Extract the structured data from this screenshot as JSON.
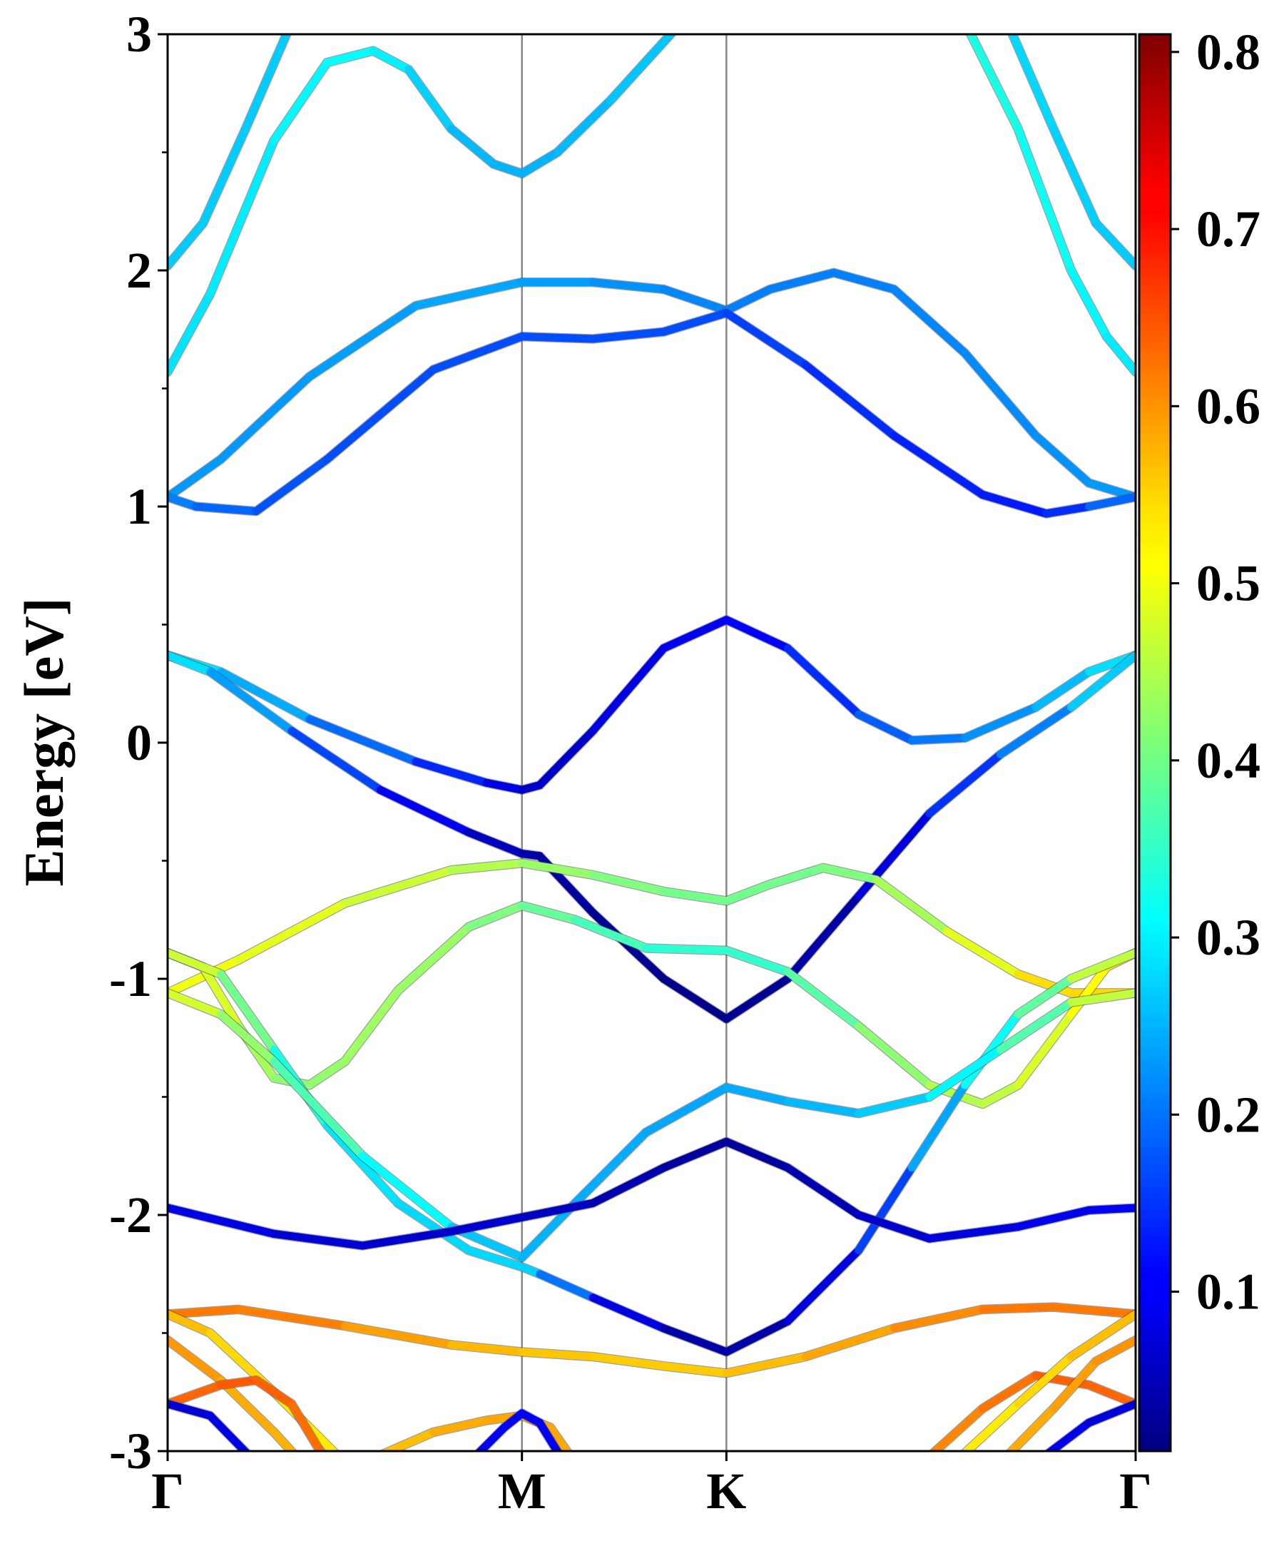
{
  "chart_data": {
    "type": "line",
    "title": "",
    "ylabel": "Energy [eV]",
    "xlabel": "",
    "ylim": [
      -3,
      3
    ],
    "yticks": [
      "-3",
      "-2",
      "-1",
      "0",
      "1",
      "2",
      "3"
    ],
    "k_path": {
      "labels": [
        "Γ",
        "M",
        "K",
        "Γ"
      ],
      "positions": [
        0,
        1,
        1.577,
        2.732
      ]
    },
    "colorbar": {
      "colormap": "jet",
      "range": [
        0.01,
        0.81
      ],
      "ticks": [
        "0.1",
        "0.2",
        "0.3",
        "0.4",
        "0.5",
        "0.6",
        "0.7",
        "0.8"
      ]
    },
    "series": [
      {
        "values": [
          [
            0,
            2.02,
            0.27
          ],
          [
            0.1,
            2.2,
            0.27
          ],
          [
            0.22,
            2.6,
            0.27
          ],
          [
            0.35,
            3.05,
            0.27
          ]
        ]
      },
      {
        "values": [
          [
            0,
            1.57,
            0.29
          ],
          [
            0.12,
            1.9,
            0.29
          ],
          [
            0.3,
            2.55,
            0.3
          ],
          [
            0.45,
            2.88,
            0.31
          ],
          [
            0.58,
            2.93,
            0.31
          ],
          [
            0.68,
            2.85,
            0.29
          ],
          [
            0.8,
            2.6,
            0.26
          ],
          [
            0.92,
            2.45,
            0.25
          ],
          [
            1.0,
            2.41,
            0.25
          ],
          [
            1.1,
            2.5,
            0.25
          ],
          [
            1.25,
            2.72,
            0.26
          ],
          [
            1.45,
            3.05,
            0.27
          ]
        ]
      },
      {
        "values": [
          [
            2.25,
            3.05,
            0.33
          ],
          [
            2.4,
            2.6,
            0.33
          ],
          [
            2.55,
            2.0,
            0.31
          ],
          [
            2.65,
            1.72,
            0.3
          ],
          [
            2.732,
            1.57,
            0.29
          ]
        ]
      },
      {
        "values": [
          [
            2.37,
            3.05,
            0.28
          ],
          [
            2.5,
            2.6,
            0.28
          ],
          [
            2.62,
            2.2,
            0.27
          ],
          [
            2.732,
            2.02,
            0.27
          ]
        ]
      },
      {
        "values": [
          [
            0,
            1.04,
            0.23
          ],
          [
            0.15,
            1.2,
            0.23
          ],
          [
            0.4,
            1.55,
            0.23
          ],
          [
            0.7,
            1.85,
            0.24
          ],
          [
            1.0,
            1.95,
            0.24
          ],
          [
            1.2,
            1.95,
            0.23
          ],
          [
            1.4,
            1.92,
            0.22
          ],
          [
            1.577,
            1.83,
            0.21
          ],
          [
            1.7,
            1.92,
            0.21
          ],
          [
            1.88,
            1.99,
            0.21
          ],
          [
            2.05,
            1.92,
            0.21
          ],
          [
            2.25,
            1.65,
            0.22
          ],
          [
            2.45,
            1.3,
            0.22
          ],
          [
            2.6,
            1.1,
            0.23
          ],
          [
            2.732,
            1.04,
            0.23
          ]
        ]
      },
      {
        "values": [
          [
            0,
            1.04,
            0.22
          ],
          [
            0.08,
            1.0,
            0.2
          ],
          [
            0.25,
            0.98,
            0.18
          ],
          [
            0.45,
            1.2,
            0.17
          ],
          [
            0.75,
            1.58,
            0.17
          ],
          [
            1.0,
            1.72,
            0.17
          ],
          [
            1.2,
            1.71,
            0.17
          ],
          [
            1.4,
            1.74,
            0.17
          ],
          [
            1.577,
            1.82,
            0.17
          ],
          [
            1.8,
            1.6,
            0.15
          ],
          [
            2.05,
            1.3,
            0.14
          ],
          [
            2.3,
            1.05,
            0.13
          ],
          [
            2.48,
            0.97,
            0.13
          ],
          [
            2.6,
            1.0,
            0.16
          ],
          [
            2.732,
            1.04,
            0.22
          ]
        ]
      },
      {
        "values": [
          [
            0,
            0.37,
            0.3
          ],
          [
            0.15,
            0.3,
            0.27
          ],
          [
            0.4,
            0.1,
            0.22
          ],
          [
            0.7,
            -0.08,
            0.17
          ],
          [
            0.9,
            -0.17,
            0.11
          ],
          [
            1.0,
            -0.2,
            0.07
          ],
          [
            1.05,
            -0.18,
            0.06
          ],
          [
            1.2,
            0.05,
            0.08
          ],
          [
            1.4,
            0.4,
            0.1
          ],
          [
            1.577,
            0.52,
            0.1
          ],
          [
            1.75,
            0.4,
            0.12
          ],
          [
            1.95,
            0.12,
            0.17
          ],
          [
            2.1,
            0.01,
            0.2
          ],
          [
            2.25,
            0.02,
            0.21
          ],
          [
            2.45,
            0.15,
            0.24
          ],
          [
            2.6,
            0.3,
            0.27
          ],
          [
            2.732,
            0.37,
            0.3
          ]
        ]
      },
      {
        "values": [
          [
            0,
            0.37,
            0.3
          ],
          [
            0.12,
            0.3,
            0.27
          ],
          [
            0.35,
            0.05,
            0.2
          ],
          [
            0.6,
            -0.2,
            0.13
          ],
          [
            0.85,
            -0.38,
            0.07
          ],
          [
            1.0,
            -0.47,
            0.05
          ],
          [
            1.05,
            -0.48,
            0.04
          ],
          [
            1.2,
            -0.72,
            0.03
          ],
          [
            1.4,
            -1.0,
            0.02
          ],
          [
            1.577,
            -1.17,
            0.02
          ],
          [
            1.75,
            -1.0,
            0.03
          ],
          [
            1.95,
            -0.65,
            0.05
          ],
          [
            2.15,
            -0.3,
            0.12
          ],
          [
            2.35,
            -0.05,
            0.18
          ],
          [
            2.55,
            0.15,
            0.24
          ],
          [
            2.732,
            0.37,
            0.3
          ]
        ]
      },
      {
        "values": [
          [
            0,
            -1.06,
            0.5
          ],
          [
            0.2,
            -0.92,
            0.5
          ],
          [
            0.5,
            -0.68,
            0.48
          ],
          [
            0.8,
            -0.54,
            0.46
          ],
          [
            1.0,
            -0.51,
            0.44
          ],
          [
            1.2,
            -0.56,
            0.42
          ],
          [
            1.4,
            -0.63,
            0.4
          ],
          [
            1.577,
            -0.67,
            0.4
          ],
          [
            1.7,
            -0.6,
            0.4
          ],
          [
            1.85,
            -0.53,
            0.4
          ],
          [
            2.0,
            -0.58,
            0.42
          ],
          [
            2.2,
            -0.8,
            0.46
          ],
          [
            2.4,
            -0.98,
            0.52
          ],
          [
            2.55,
            -1.06,
            0.55
          ],
          [
            2.732,
            -1.06,
            0.53
          ]
        ]
      },
      {
        "values": [
          [
            0,
            -0.89,
            0.52
          ],
          [
            0.1,
            -0.95,
            0.5
          ],
          [
            0.2,
            -1.2,
            0.46
          ],
          [
            0.3,
            -1.42,
            0.42
          ],
          [
            0.4,
            -1.45,
            0.42
          ],
          [
            0.5,
            -1.35,
            0.43
          ],
          [
            0.65,
            -1.05,
            0.44
          ],
          [
            0.85,
            -0.78,
            0.42
          ],
          [
            1.0,
            -0.69,
            0.4
          ],
          [
            1.15,
            -0.75,
            0.38
          ],
          [
            1.35,
            -0.87,
            0.35
          ],
          [
            1.577,
            -0.88,
            0.34
          ],
          [
            1.75,
            -0.97,
            0.36
          ],
          [
            1.95,
            -1.2,
            0.4
          ],
          [
            2.15,
            -1.45,
            0.44
          ],
          [
            2.3,
            -1.53,
            0.46
          ],
          [
            2.4,
            -1.45,
            0.46
          ],
          [
            2.55,
            -1.15,
            0.5
          ],
          [
            2.65,
            -0.95,
            0.52
          ],
          [
            2.732,
            -0.89,
            0.52
          ]
        ]
      },
      {
        "values": [
          [
            0,
            -0.89,
            0.5
          ],
          [
            0.15,
            -0.98,
            0.44
          ],
          [
            0.3,
            -1.3,
            0.36
          ],
          [
            0.45,
            -1.62,
            0.3
          ],
          [
            0.65,
            -1.95,
            0.28
          ],
          [
            0.85,
            -2.15,
            0.28
          ],
          [
            1.0,
            -2.22,
            0.28
          ],
          [
            1.05,
            -2.25,
            0.27
          ],
          [
            1.2,
            -2.35,
            0.13
          ],
          [
            1.4,
            -2.48,
            0.05
          ],
          [
            1.577,
            -2.58,
            0.03
          ],
          [
            1.75,
            -2.45,
            0.05
          ],
          [
            1.95,
            -2.15,
            0.12
          ],
          [
            2.1,
            -1.8,
            0.2
          ],
          [
            2.25,
            -1.45,
            0.28
          ],
          [
            2.4,
            -1.15,
            0.35
          ],
          [
            2.55,
            -1.0,
            0.42
          ],
          [
            2.732,
            -0.89,
            0.5
          ]
        ]
      },
      {
        "values": [
          [
            0,
            -1.06,
            0.5
          ],
          [
            0.15,
            -1.15,
            0.45
          ],
          [
            0.3,
            -1.35,
            0.4
          ],
          [
            0.55,
            -1.75,
            0.34
          ],
          [
            0.8,
            -2.05,
            0.28
          ],
          [
            1.0,
            -2.18,
            0.25
          ],
          [
            1.15,
            -1.95,
            0.25
          ],
          [
            1.35,
            -1.65,
            0.24
          ],
          [
            1.577,
            -1.46,
            0.24
          ],
          [
            1.75,
            -1.52,
            0.25
          ],
          [
            1.95,
            -1.57,
            0.26
          ],
          [
            2.15,
            -1.5,
            0.28
          ],
          [
            2.35,
            -1.3,
            0.33
          ],
          [
            2.55,
            -1.1,
            0.42
          ],
          [
            2.732,
            -1.06,
            0.5
          ]
        ]
      },
      {
        "values": [
          [
            0,
            -1.97,
            0.1
          ],
          [
            0.3,
            -2.08,
            0.08
          ],
          [
            0.55,
            -2.13,
            0.07
          ],
          [
            0.8,
            -2.07,
            0.07
          ],
          [
            1.0,
            -2.01,
            0.07
          ],
          [
            1.2,
            -1.95,
            0.05
          ],
          [
            1.4,
            -1.8,
            0.04
          ],
          [
            1.577,
            -1.69,
            0.03
          ],
          [
            1.75,
            -1.8,
            0.04
          ],
          [
            1.95,
            -2.0,
            0.06
          ],
          [
            2.15,
            -2.1,
            0.08
          ],
          [
            2.4,
            -2.05,
            0.09
          ],
          [
            2.6,
            -1.98,
            0.1
          ],
          [
            2.732,
            -1.97,
            0.1
          ]
        ]
      },
      {
        "values": [
          [
            0,
            -2.42,
            0.61
          ],
          [
            0.2,
            -2.4,
            0.62
          ],
          [
            0.5,
            -2.47,
            0.6
          ],
          [
            0.8,
            -2.55,
            0.57
          ],
          [
            1.0,
            -2.58,
            0.56
          ],
          [
            1.2,
            -2.6,
            0.55
          ],
          [
            1.4,
            -2.64,
            0.55
          ],
          [
            1.577,
            -2.67,
            0.55
          ],
          [
            1.8,
            -2.6,
            0.57
          ],
          [
            2.05,
            -2.48,
            0.59
          ],
          [
            2.3,
            -2.4,
            0.61
          ],
          [
            2.5,
            -2.39,
            0.62
          ],
          [
            2.732,
            -2.42,
            0.61
          ]
        ]
      },
      {
        "values": [
          [
            0,
            -2.42,
            0.57
          ],
          [
            0.12,
            -2.5,
            0.55
          ],
          [
            0.3,
            -2.75,
            0.53
          ],
          [
            0.5,
            -3.05,
            0.52
          ]
        ]
      },
      {
        "values": [
          [
            0,
            -2.53,
            0.6
          ],
          [
            0.15,
            -2.7,
            0.58
          ],
          [
            0.3,
            -2.92,
            0.57
          ],
          [
            0.38,
            -3.05,
            0.57
          ]
        ]
      },
      {
        "values": [
          [
            0,
            -2.8,
            0.62
          ],
          [
            0.15,
            -2.72,
            0.64
          ],
          [
            0.25,
            -2.7,
            0.64
          ],
          [
            0.35,
            -2.8,
            0.63
          ],
          [
            0.45,
            -3.05,
            0.62
          ]
        ]
      },
      {
        "values": [
          [
            0,
            -2.8,
            0.07
          ],
          [
            0.12,
            -2.85,
            0.08
          ],
          [
            0.25,
            -3.05,
            0.1
          ]
        ]
      },
      {
        "values": [
          [
            0.55,
            -3.05,
            0.55
          ],
          [
            0.75,
            -2.92,
            0.57
          ],
          [
            0.9,
            -2.87,
            0.58
          ],
          [
            1.0,
            -2.85,
            0.58
          ],
          [
            1.08,
            -2.9,
            0.58
          ],
          [
            1.15,
            -3.05,
            0.58
          ]
        ]
      },
      {
        "values": [
          [
            0.85,
            -3.05,
            0.1
          ],
          [
            0.95,
            -2.9,
            0.1
          ],
          [
            1.0,
            -2.84,
            0.1
          ],
          [
            1.05,
            -2.88,
            0.1
          ],
          [
            1.12,
            -3.05,
            0.1
          ]
        ]
      },
      {
        "values": [
          [
            2.13,
            -3.05,
            0.6
          ],
          [
            2.3,
            -2.82,
            0.61
          ],
          [
            2.45,
            -2.68,
            0.63
          ],
          [
            2.6,
            -2.72,
            0.64
          ],
          [
            2.732,
            -2.8,
            0.62
          ]
        ]
      },
      {
        "values": [
          [
            2.22,
            -3.05,
            0.52
          ],
          [
            2.4,
            -2.8,
            0.53
          ],
          [
            2.55,
            -2.6,
            0.55
          ],
          [
            2.732,
            -2.42,
            0.57
          ]
        ]
      },
      {
        "values": [
          [
            2.35,
            -3.05,
            0.57
          ],
          [
            2.5,
            -2.82,
            0.58
          ],
          [
            2.62,
            -2.62,
            0.59
          ],
          [
            2.732,
            -2.53,
            0.6
          ]
        ]
      },
      {
        "values": [
          [
            2.45,
            -3.05,
            0.1
          ],
          [
            2.6,
            -2.88,
            0.09
          ],
          [
            2.732,
            -2.8,
            0.07
          ]
        ]
      }
    ]
  }
}
